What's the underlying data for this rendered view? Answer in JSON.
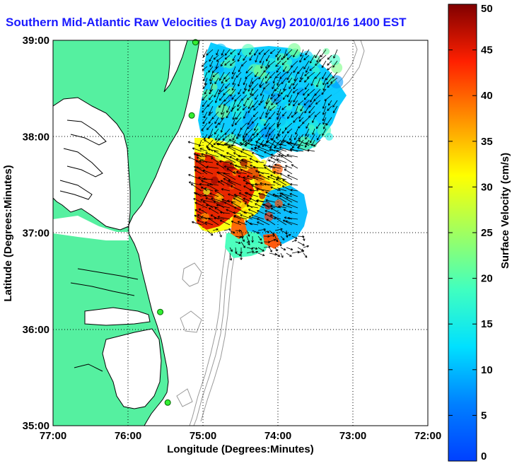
{
  "title": "Southern Mid-Atlantic Raw Velocities (1 Day Avg) 2010/01/16 1400 EST",
  "map": {
    "xlabel": "Longitude (Degrees:Minutes)",
    "ylabel": "Latitude (Degrees:Minutes)",
    "x_ticks": [
      "77:00",
      "76:00",
      "75:00",
      "74:00",
      "73:00",
      "72:00"
    ],
    "y_ticks": [
      "39:00",
      "38:00",
      "37:00",
      "36:00",
      "35:00"
    ],
    "lon_range": [
      -77,
      -72
    ],
    "lat_range": [
      35,
      39
    ],
    "grid": "dotted",
    "land_color": "#55f0a0",
    "contour_color": "#999999"
  },
  "colorbar": {
    "label": "Surface Velocity (cm/s)",
    "ticks": [
      "0",
      "5",
      "10",
      "15",
      "20",
      "25",
      "30",
      "35",
      "40",
      "45",
      "50"
    ],
    "range": [
      0,
      50
    ],
    "colormap": "jet"
  },
  "stations": [
    {
      "lon": -75.1,
      "lat": 38.98
    },
    {
      "lon": -75.15,
      "lat": 38.22
    },
    {
      "lon": -75.57,
      "lat": 36.18
    },
    {
      "lon": -75.47,
      "lat": 35.24
    }
  ]
}
